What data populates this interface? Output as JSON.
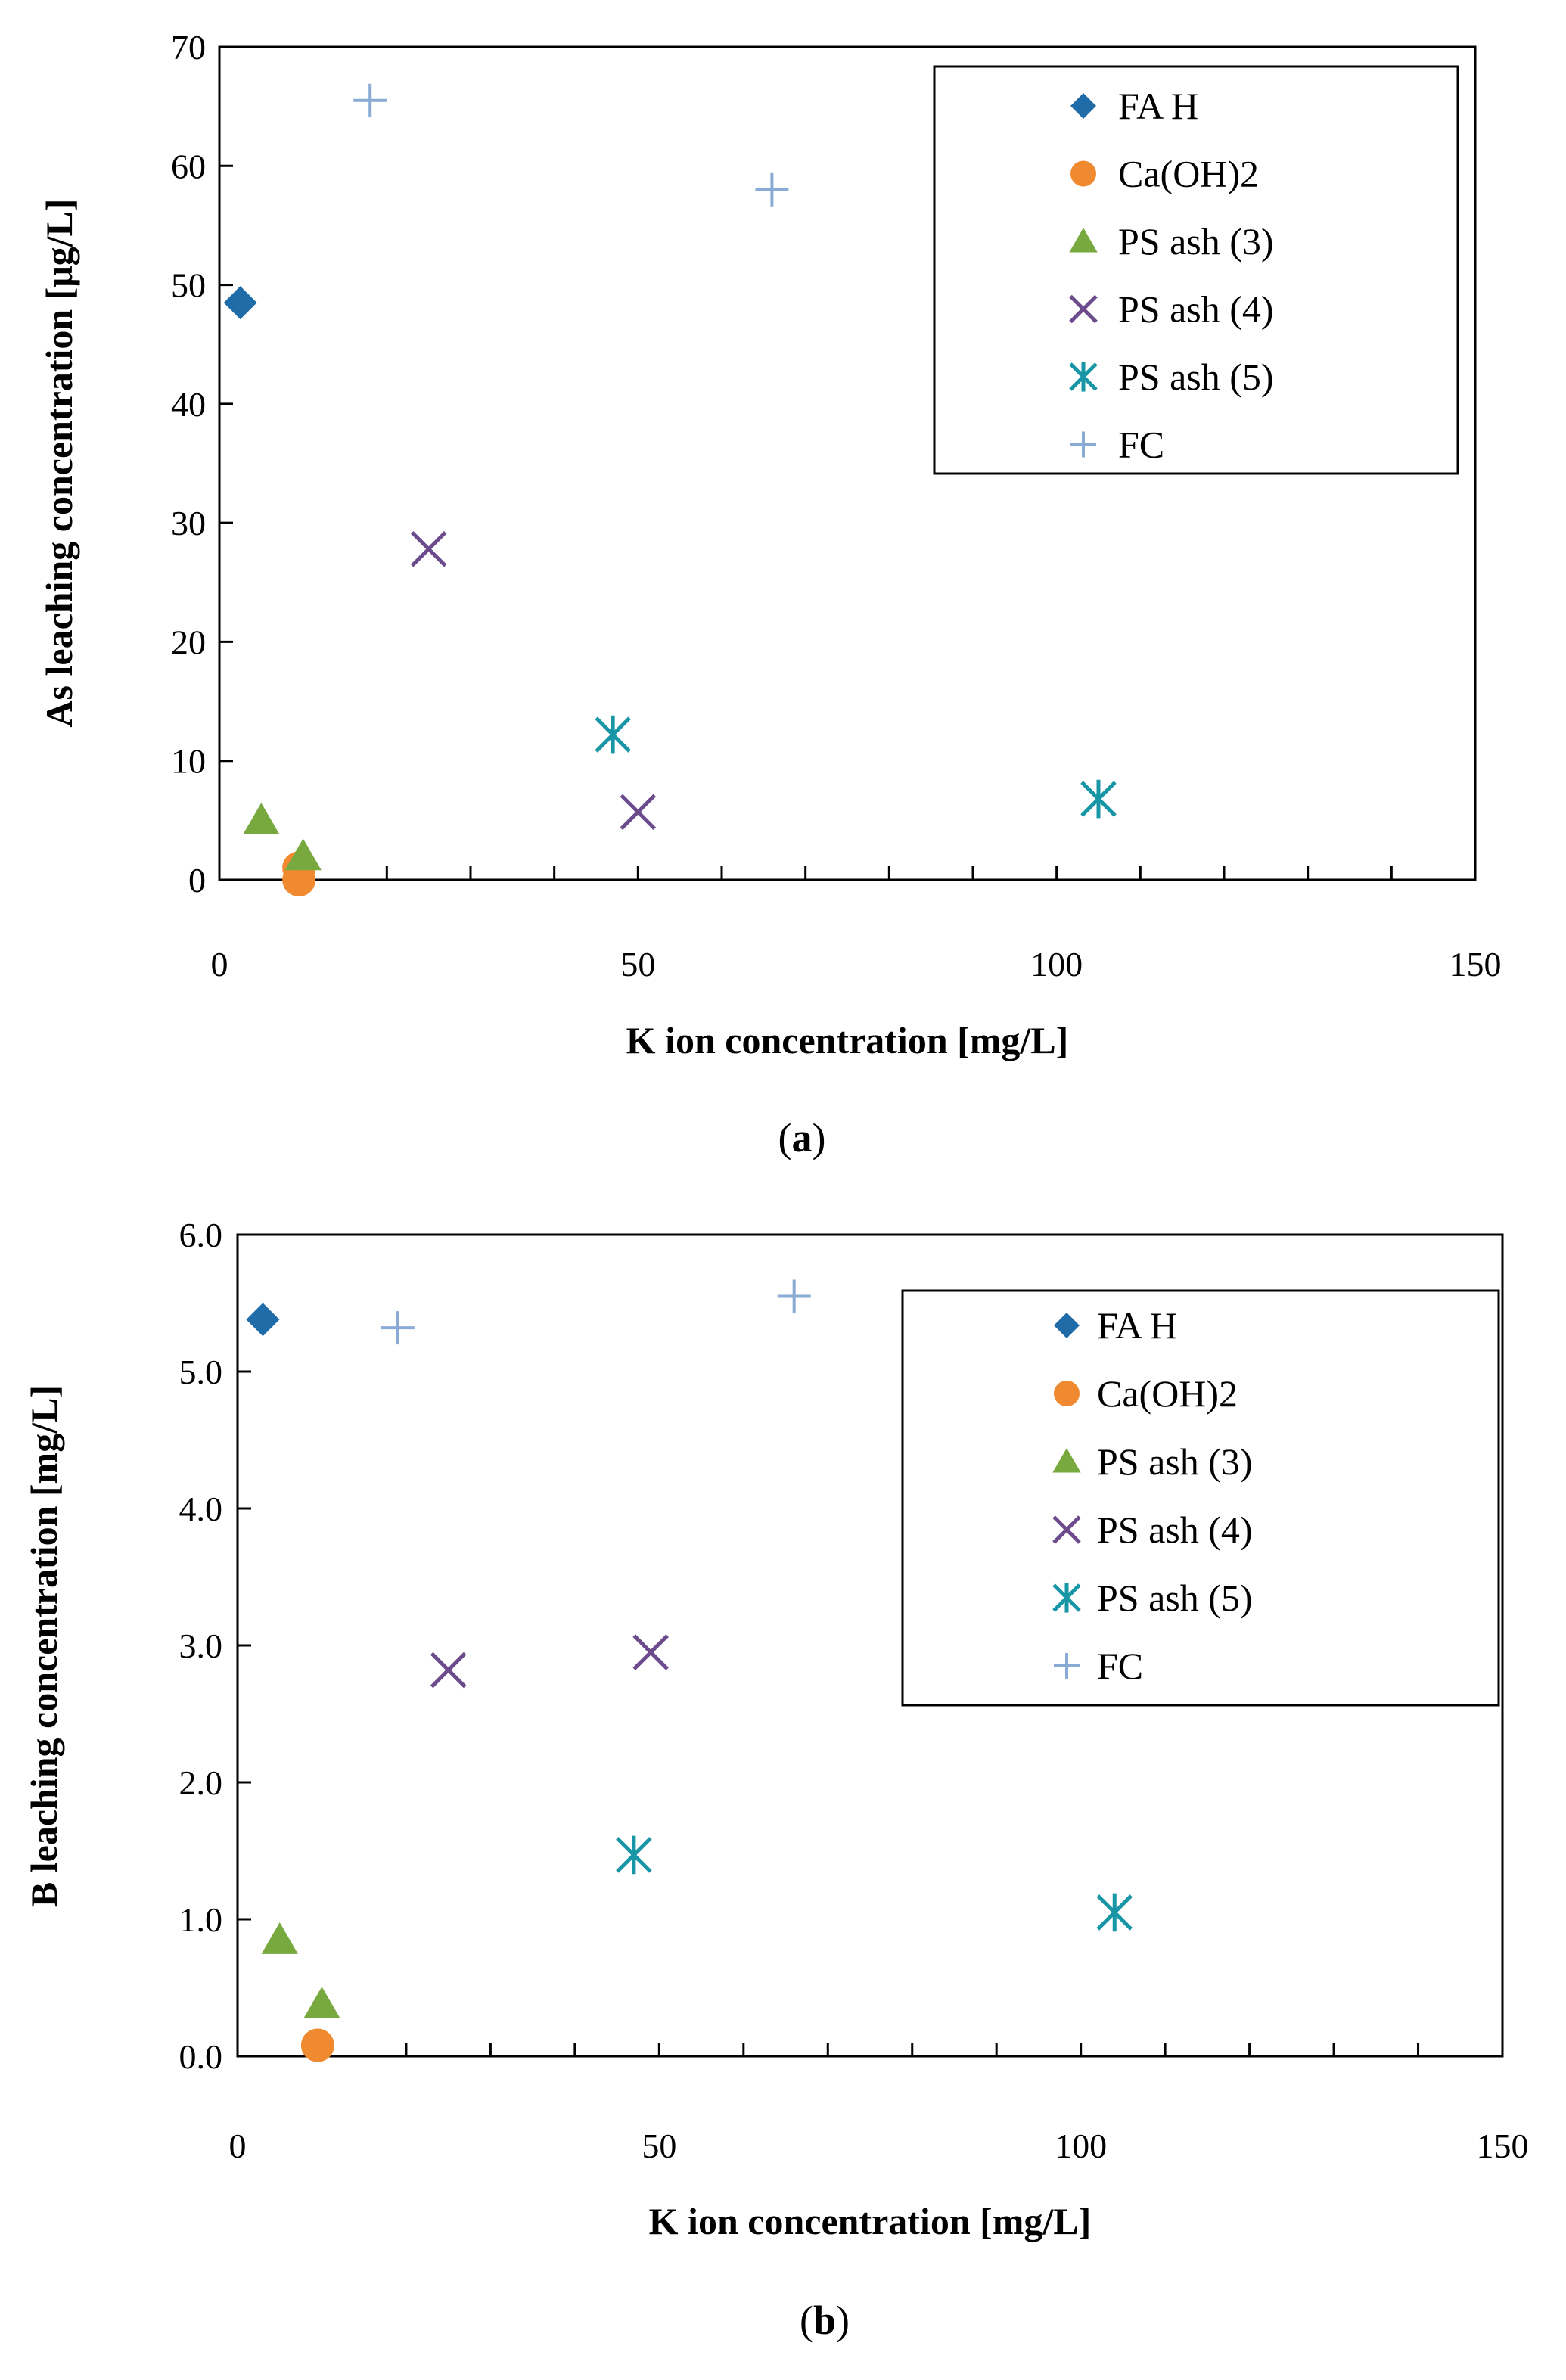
{
  "chart_data": [
    {
      "type": "scatter",
      "caption_label": "a",
      "xlabel": "K ion concentration  [mg/L]",
      "ylabel": "As leaching concentration  [μg/L]",
      "xlim": [
        0,
        150
      ],
      "ylim": [
        0,
        70
      ],
      "x_ticks": [
        "0",
        "50",
        "100",
        "150"
      ],
      "y_ticks": [
        "0",
        "10",
        "20",
        "30",
        "40",
        "50",
        "60",
        "70"
      ],
      "grid": false,
      "legend_position": "top-right",
      "series": [
        {
          "name": "FA H",
          "marker": "diamond",
          "color": "#1f6ca8",
          "points": [
            [
              2.5,
              48.5
            ]
          ]
        },
        {
          "name": "Ca(OH)2",
          "marker": "circle",
          "color": "#f08a30",
          "points": [
            [
              9.5,
              1.0
            ],
            [
              9.5,
              0.0
            ]
          ]
        },
        {
          "name": "PS ash (3)",
          "marker": "triangle",
          "color": "#77a93f",
          "points": [
            [
              5.0,
              5.0
            ],
            [
              10.0,
              2.0
            ]
          ]
        },
        {
          "name": "PS ash (4)",
          "marker": "x",
          "color": "#6c4b8c",
          "points": [
            [
              25.0,
              27.8
            ],
            [
              50.0,
              5.7
            ]
          ]
        },
        {
          "name": "PS ash (5)",
          "marker": "asterisk",
          "color": "#1896a6",
          "points": [
            [
              47.0,
              12.2
            ],
            [
              105.0,
              6.8
            ]
          ]
        },
        {
          "name": "FC",
          "marker": "plus",
          "color": "#8aabd6",
          "points": [
            [
              18.0,
              65.5
            ],
            [
              66.0,
              58.0
            ]
          ]
        }
      ]
    },
    {
      "type": "scatter",
      "caption_label": "b",
      "xlabel": "K ion concentration  [mg/L]",
      "ylabel": "B leaching concentration  [mg/L]",
      "xlim": [
        0,
        150
      ],
      "ylim": [
        0,
        6
      ],
      "x_ticks": [
        "0",
        "50",
        "100",
        "150"
      ],
      "y_ticks": [
        "0.0",
        "1.0",
        "2.0",
        "3.0",
        "4.0",
        "5.0",
        "6.0"
      ],
      "grid": false,
      "legend_position": "top-right",
      "series": [
        {
          "name": "FA H",
          "marker": "diamond",
          "color": "#1f6ca8",
          "points": [
            [
              3.0,
              5.38
            ]
          ]
        },
        {
          "name": "Ca(OH)2",
          "marker": "circle",
          "color": "#f08a30",
          "points": [
            [
              9.5,
              0.08
            ]
          ]
        },
        {
          "name": "PS ash (3)",
          "marker": "triangle",
          "color": "#77a93f",
          "points": [
            [
              5.0,
              0.85
            ],
            [
              10.0,
              0.38
            ]
          ]
        },
        {
          "name": "PS ash (4)",
          "marker": "x",
          "color": "#6c4b8c",
          "points": [
            [
              25.0,
              2.82
            ],
            [
              49.0,
              2.95
            ]
          ]
        },
        {
          "name": "PS ash (5)",
          "marker": "asterisk",
          "color": "#1896a6",
          "points": [
            [
              47.0,
              1.47
            ],
            [
              104.0,
              1.05
            ]
          ]
        },
        {
          "name": "FC",
          "marker": "plus",
          "color": "#8aabd6",
          "points": [
            [
              19.0,
              5.32
            ],
            [
              66.0,
              5.55
            ]
          ]
        }
      ]
    }
  ]
}
